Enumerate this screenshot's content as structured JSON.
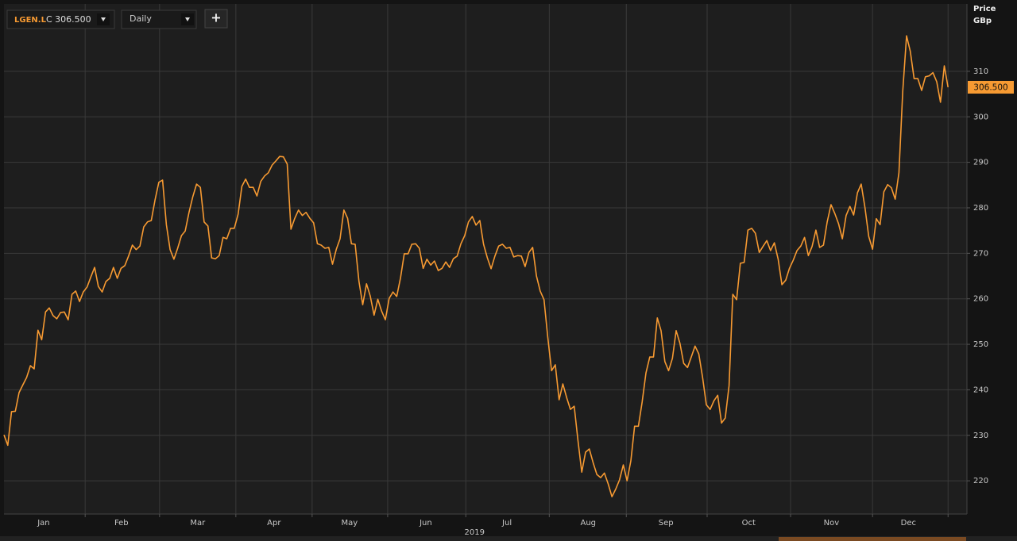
{
  "header": {
    "symbol": "LGEN.L",
    "close": "C 306.500",
    "interval": "Daily",
    "add": "+"
  },
  "chart_data": {
    "type": "line",
    "y_axis_title": "Price",
    "y_axis_unit": "GBp",
    "x_label": "2019",
    "color": "#f79a32",
    "grid": true,
    "last_label": "306.500",
    "xlim": [
      0,
      255
    ],
    "xticks": [
      {
        "value": 10.5,
        "label": "Jan"
      },
      {
        "value": 31.1,
        "label": "Feb"
      },
      {
        "value": 51.3,
        "label": "Mar"
      },
      {
        "value": 71.5,
        "label": "Apr"
      },
      {
        "value": 91.5,
        "label": "May"
      },
      {
        "value": 111.7,
        "label": "Jun"
      },
      {
        "value": 133.2,
        "label": "Jul"
      },
      {
        "value": 154.7,
        "label": "Aug"
      },
      {
        "value": 175.3,
        "label": "Sep"
      },
      {
        "value": 197.2,
        "label": "Oct"
      },
      {
        "value": 219.1,
        "label": "Nov"
      },
      {
        "value": 239.5,
        "label": "Dec"
      }
    ],
    "xgrid": [
      21.5,
      41.2,
      61.4,
      81.6,
      101.6,
      122.3,
      144.4,
      164.8,
      186.2,
      208.3,
      230.0,
      250
    ],
    "x_label_at": 124.6,
    "ylim": [
      212.7,
      324.8
    ],
    "yticks": [
      220,
      230,
      240,
      250,
      260,
      270,
      280,
      290,
      300,
      310
    ],
    "values": [
      230.1,
      227.8,
      235.2,
      235.3,
      239.4,
      241.1,
      242.7,
      245.3,
      244.6,
      253.1,
      251.0,
      257.1,
      258.0,
      256.3,
      255.6,
      257.0,
      257.1,
      255.4,
      261.0,
      261.7,
      259.4,
      261.5,
      262.6,
      264.8,
      266.9,
      262.7,
      261.5,
      263.8,
      264.5,
      266.9,
      264.5,
      266.7,
      267.3,
      269.4,
      271.8,
      270.8,
      271.6,
      275.8,
      276.9,
      277.2,
      281.7,
      285.6,
      286.1,
      276.3,
      270.8,
      268.7,
      271.1,
      273.9,
      274.9,
      279.0,
      282.4,
      285.2,
      284.5,
      276.9,
      276.0,
      269.0,
      268.8,
      269.5,
      273.5,
      273.2,
      275.5,
      275.5,
      278.6,
      284.7,
      286.3,
      284.5,
      284.5,
      282.6,
      285.8,
      287.0,
      287.7,
      289.4,
      290.3,
      291.3,
      291.2,
      289.6,
      275.3,
      277.7,
      279.5,
      278.3,
      279.0,
      277.7,
      276.7,
      272.1,
      271.8,
      271.1,
      271.3,
      267.6,
      270.9,
      273.2,
      279.5,
      277.7,
      272.1,
      272.0,
      263.8,
      258.7,
      263.3,
      260.6,
      256.4,
      259.9,
      257.3,
      255.4,
      260.1,
      261.5,
      260.5,
      264.6,
      269.9,
      269.9,
      272.0,
      272.1,
      271.1,
      266.7,
      268.7,
      267.4,
      268.3,
      266.2,
      266.7,
      268.1,
      266.9,
      268.8,
      269.4,
      272.1,
      273.9,
      276.9,
      278.1,
      276.2,
      277.2,
      272.0,
      269.0,
      266.6,
      269.4,
      271.6,
      272.0,
      271.1,
      271.3,
      269.2,
      269.5,
      269.4,
      267.1,
      270.2,
      271.3,
      265.0,
      261.7,
      259.8,
      251.6,
      244.2,
      245.5,
      237.8,
      241.3,
      238.3,
      235.7,
      236.4,
      228.9,
      221.9,
      226.3,
      227.0,
      224.0,
      221.4,
      220.7,
      221.7,
      219.3,
      216.5,
      218.2,
      220.2,
      223.5,
      220.0,
      224.4,
      232.0,
      232.0,
      237.3,
      243.7,
      247.2,
      247.2,
      255.8,
      253.0,
      246.2,
      244.2,
      246.9,
      253.0,
      250.2,
      245.8,
      244.9,
      247.2,
      249.6,
      247.9,
      242.7,
      236.7,
      235.7,
      237.6,
      238.8,
      232.7,
      233.8,
      240.9,
      261.0,
      259.8,
      267.8,
      268.0,
      275.1,
      275.5,
      274.4,
      270.2,
      271.5,
      272.8,
      270.6,
      272.3,
      268.7,
      263.1,
      264.1,
      266.7,
      268.5,
      270.6,
      271.6,
      273.5,
      269.5,
      271.5,
      275.1,
      271.3,
      271.8,
      276.9,
      280.7,
      278.8,
      276.5,
      273.2,
      278.3,
      280.3,
      278.4,
      283.3,
      285.2,
      280.0,
      273.7,
      270.9,
      277.6,
      276.3,
      283.5,
      285.1,
      284.4,
      281.9,
      287.7,
      305.6,
      317.8,
      314.4,
      308.4,
      308.4,
      305.8,
      308.8,
      309.0,
      309.7,
      307.7,
      303.2,
      311.2,
      306.5
    ]
  }
}
